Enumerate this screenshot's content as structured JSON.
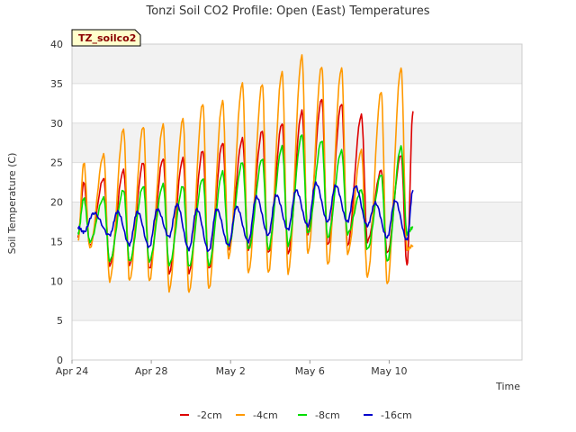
{
  "chart_data": {
    "type": "line",
    "title": "Tonzi Soil CO2 Profile: Open (East) Temperatures",
    "xlabel": "Time",
    "ylabel": "Soil Temperature (C)",
    "badge": "TZ_soilco2",
    "ylim": [
      0,
      40
    ],
    "xlim": [
      0,
      22.7
    ],
    "yticks": [
      "0",
      "5",
      "10",
      "15",
      "20",
      "25",
      "30",
      "35",
      "40"
    ],
    "xticks": [
      {
        "label": "Apr 24",
        "day": 0
      },
      {
        "label": "Apr 28",
        "day": 4
      },
      {
        "label": "May 2",
        "day": 8
      },
      {
        "label": "May 6",
        "day": 12
      },
      {
        "label": "May 10",
        "day": 16
      }
    ],
    "x_start_date": "2024-04-24",
    "x_end_day": 17.2,
    "grid": "horizontal bands",
    "legend_position": "bottom",
    "series": [
      {
        "name": "-2cm",
        "color": "#dd0000",
        "x": [
          0.3,
          0.6,
          0.9,
          1.6,
          1.9,
          2.6,
          2.9,
          3.6,
          3.9,
          4.6,
          4.9,
          5.6,
          5.9,
          6.6,
          6.9,
          7.6,
          7.9,
          8.6,
          8.9,
          9.6,
          9.9,
          10.6,
          10.9,
          11.6,
          11.9,
          12.6,
          12.9,
          13.6,
          13.9,
          14.6,
          14.9,
          15.6,
          15.9,
          16.6,
          16.9,
          17.2
        ],
        "y": [
          15.5,
          22.5,
          14.5,
          23,
          12,
          24,
          12,
          25,
          11.5,
          25.5,
          11,
          25.5,
          11,
          26.5,
          11.5,
          27.5,
          14,
          28,
          14,
          29,
          13.5,
          30,
          13.5,
          31.5,
          16,
          33,
          14.5,
          32.5,
          14.5,
          31,
          15,
          24,
          13.5,
          26,
          12,
          31.5
        ]
      },
      {
        "name": "-4cm",
        "color": "#ff9900",
        "x": [
          0.3,
          0.6,
          0.9,
          1.6,
          1.9,
          2.6,
          2.9,
          3.6,
          3.9,
          4.6,
          4.9,
          5.6,
          5.9,
          6.6,
          6.9,
          7.6,
          7.9,
          8.6,
          8.9,
          9.6,
          9.9,
          10.6,
          10.9,
          11.6,
          11.9,
          12.6,
          12.9,
          13.6,
          13.9,
          14.6,
          14.9,
          15.6,
          15.9,
          16.6,
          16.9,
          17.2
        ],
        "y": [
          15,
          25,
          14.2,
          26,
          10,
          29.2,
          10,
          29.6,
          10,
          29.8,
          8.8,
          30.5,
          8.5,
          32.5,
          9,
          32.8,
          13,
          35,
          11,
          35,
          11,
          36.5,
          11,
          38.5,
          13.5,
          37.2,
          12,
          37,
          13.5,
          26.5,
          10.5,
          34,
          9.5,
          37,
          14,
          14.5
        ]
      },
      {
        "name": "-8cm",
        "color": "#00dd00",
        "x": [
          0.3,
          0.6,
          0.9,
          1.6,
          1.9,
          2.6,
          2.9,
          3.6,
          3.9,
          4.6,
          4.9,
          5.6,
          5.9,
          6.6,
          6.9,
          7.6,
          7.9,
          8.6,
          8.9,
          9.6,
          9.9,
          10.6,
          10.9,
          11.6,
          11.9,
          12.6,
          12.9,
          13.6,
          13.9,
          14.6,
          14.9,
          15.6,
          15.9,
          16.6,
          16.9,
          17.2
        ],
        "y": [
          16,
          20.5,
          15,
          20.5,
          12.5,
          21.5,
          12.5,
          22,
          12.5,
          22.2,
          12,
          22,
          11.8,
          23,
          12,
          23.8,
          14.5,
          25,
          14,
          25.5,
          14,
          27,
          14.5,
          28.5,
          16,
          27.8,
          15.5,
          26.5,
          16,
          21.5,
          14,
          23.5,
          12.5,
          27,
          16,
          16.8
        ]
      },
      {
        "name": "-16cm",
        "color": "#0000cc",
        "x": [
          0.3,
          0.6,
          1.1,
          1.9,
          2.3,
          2.9,
          3.3,
          3.9,
          4.3,
          4.9,
          5.3,
          5.9,
          6.3,
          6.9,
          7.3,
          7.9,
          8.3,
          8.9,
          9.3,
          9.9,
          10.3,
          10.9,
          11.3,
          11.9,
          12.3,
          12.9,
          13.3,
          13.9,
          14.3,
          14.9,
          15.3,
          15.9,
          16.3,
          16.9,
          17.2
        ],
        "y": [
          16.8,
          16.2,
          18.6,
          15.8,
          18.8,
          14.6,
          18.8,
          14.3,
          19.1,
          15.6,
          19.7,
          14,
          19.1,
          13.8,
          19.1,
          14.5,
          19.4,
          15,
          20.7,
          15.8,
          20.9,
          16.5,
          21.5,
          17,
          22.4,
          17.5,
          22.1,
          17.5,
          22,
          17,
          19.9,
          15.5,
          20.2,
          15.2,
          21.5
        ]
      }
    ]
  }
}
